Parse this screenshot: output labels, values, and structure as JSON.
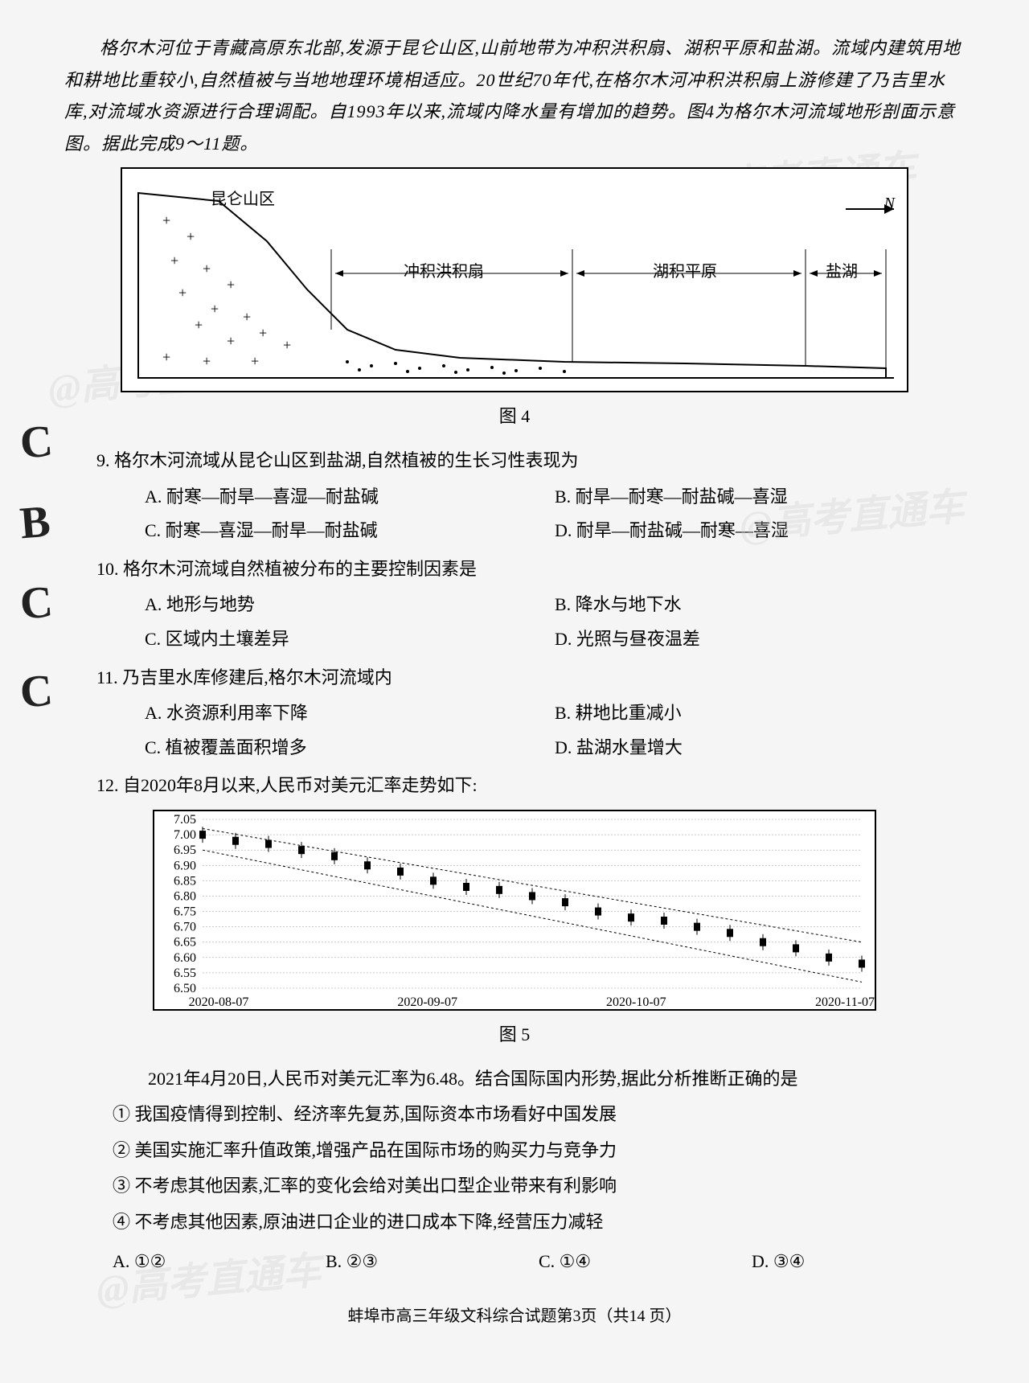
{
  "intro": {
    "paragraph": "格尔木河位于青藏高原东北部,发源于昆仑山区,山前地带为冲积洪积扇、湖积平原和盐湖。流域内建筑用地和耕地比重较小,自然植被与当地地理环境相适应。20世纪70年代,在格尔木河冲积洪积扇上游修建了乃吉里水库,对流域水资源进行合理调配。自1993年以来,流域内降水量有增加的趋势。图4为格尔木河流域地形剖面示意图。据此完成9～11题。"
  },
  "diagram": {
    "labels": {
      "mountain": "昆仑山区",
      "fan": "冲积洪积扇",
      "plain": "湖积平原",
      "lake": "盐湖",
      "north": "N"
    },
    "caption": "图 4",
    "colors": {
      "border": "#000000",
      "line": "#000000",
      "background": "#ffffff"
    }
  },
  "q9": {
    "number": "9.",
    "text": "格尔木河流域从昆仑山区到盐湖,自然植被的生长习性表现为",
    "options": {
      "A": "A. 耐寒—耐旱—喜湿—耐盐碱",
      "B": "B. 耐旱—耐寒—耐盐碱—喜湿",
      "C": "C. 耐寒—喜湿—耐旱—耐盐碱",
      "D": "D. 耐旱—耐盐碱—耐寒—喜湿"
    }
  },
  "q10": {
    "number": "10.",
    "text": "格尔木河流域自然植被分布的主要控制因素是",
    "options": {
      "A": "A. 地形与地势",
      "B": "B. 降水与地下水",
      "C": "C. 区域内土壤差异",
      "D": "D. 光照与昼夜温差"
    }
  },
  "q11": {
    "number": "11.",
    "text": "乃吉里水库修建后,格尔木河流域内",
    "options": {
      "A": "A. 水资源利用率下降",
      "B": "B. 耕地比重减小",
      "C": "C. 植被覆盖面积增多",
      "D": "D. 盐湖水量增大"
    }
  },
  "q12": {
    "number": "12.",
    "text": "自2020年8月以来,人民币对美元汇率走势如下:",
    "chart": {
      "caption": "图 5",
      "type": "line",
      "ylim": [
        6.5,
        7.05
      ],
      "ytick_step": 0.05,
      "yticks": [
        "7.05",
        "7.00",
        "6.95",
        "6.90",
        "6.85",
        "6.80",
        "6.75",
        "6.70",
        "6.65",
        "6.60",
        "6.55",
        "6.50"
      ],
      "xticks": [
        "2020-08-07",
        "2020-09-07",
        "2020-10-07",
        "2020-11-07"
      ],
      "data_points": [
        [
          0,
          7.0
        ],
        [
          5,
          6.98
        ],
        [
          10,
          6.97
        ],
        [
          15,
          6.95
        ],
        [
          20,
          6.93
        ],
        [
          25,
          6.9
        ],
        [
          30,
          6.88
        ],
        [
          35,
          6.85
        ],
        [
          40,
          6.83
        ],
        [
          45,
          6.82
        ],
        [
          50,
          6.8
        ],
        [
          55,
          6.78
        ],
        [
          60,
          6.75
        ],
        [
          65,
          6.73
        ],
        [
          70,
          6.72
        ],
        [
          75,
          6.7
        ],
        [
          80,
          6.68
        ],
        [
          85,
          6.65
        ],
        [
          90,
          6.63
        ],
        [
          95,
          6.6
        ],
        [
          100,
          6.58
        ]
      ],
      "colors": {
        "line": "#000000",
        "grid": "#999999",
        "background": "#ffffff",
        "border": "#000000"
      },
      "label_fontsize": 16
    },
    "context": "2021年4月20日,人民币对美元汇率为6.48。结合国际国内形势,据此分析推断正确的是",
    "statements": {
      "s1": "① 我国疫情得到控制、经济率先复苏,国际资本市场看好中国发展",
      "s2": "② 美国实施汇率升值政策,增强产品在国际市场的购买力与竞争力",
      "s3": "③ 不考虑其他因素,汇率的变化会给对美出口型企业带来有利影响",
      "s4": "④ 不考虑其他因素,原油进口企业的进口成本下降,经营压力减轻"
    },
    "options": {
      "A": "A. ①②",
      "B": "B. ②③",
      "C": "C. ①④",
      "D": "D. ③④"
    }
  },
  "footer": "蚌埠市高三年级文科综合试题第3页（共14 页）",
  "watermarks": {
    "text": "@高考直通车"
  },
  "handwritten": {
    "q9": "C",
    "q10": "B",
    "q11": "C",
    "q12": "C"
  }
}
